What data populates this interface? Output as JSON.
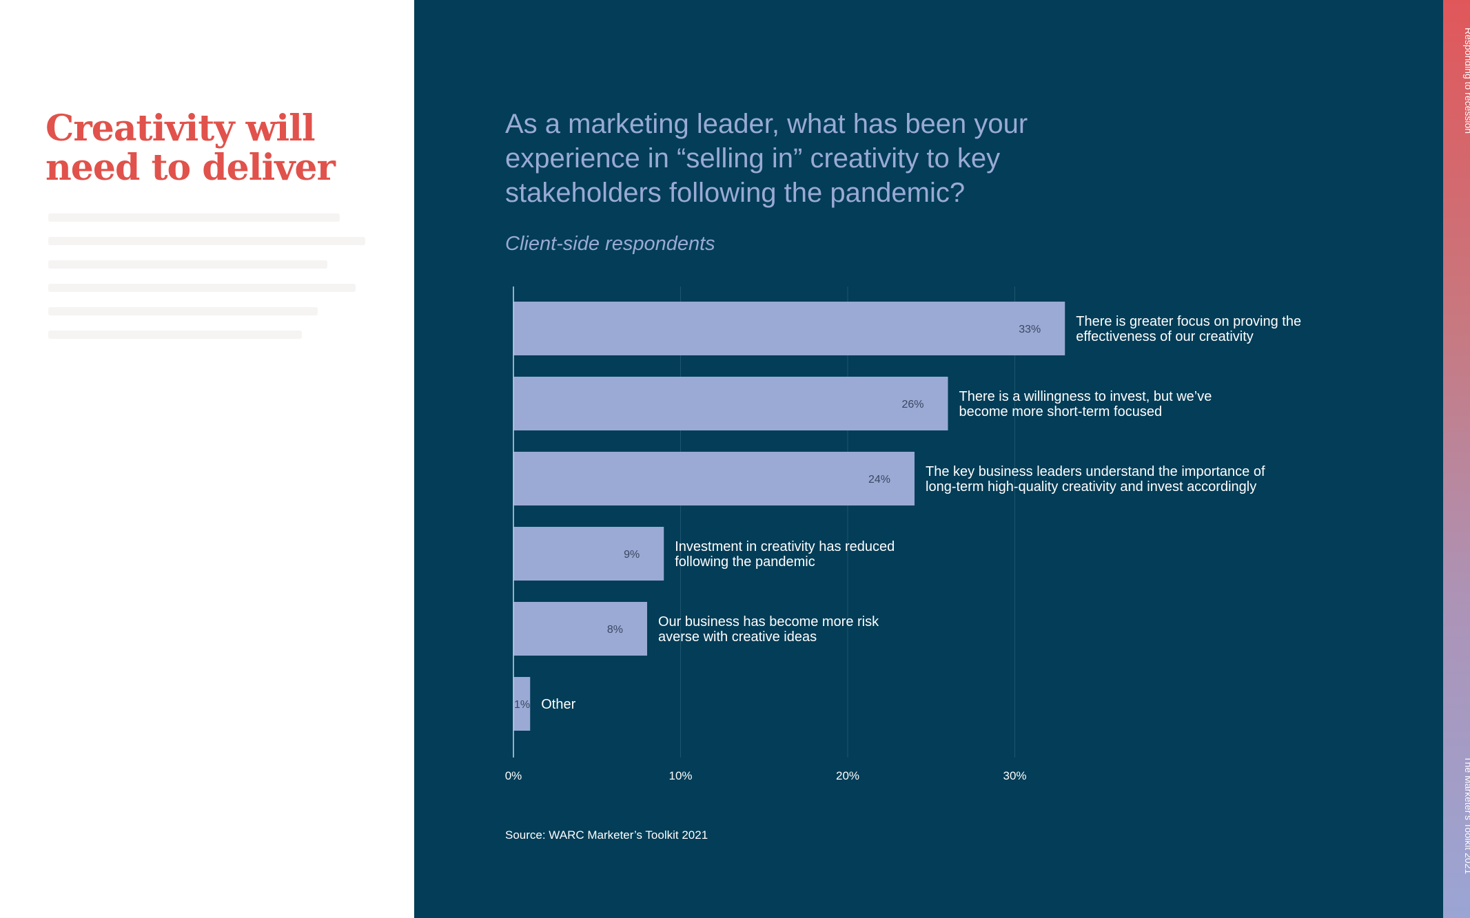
{
  "left": {
    "headline_line1": "Creativity will",
    "headline_line2": "need to deliver"
  },
  "side": {
    "top_label": "Responding to recession",
    "bottom_label": "The Marketer's Toolkit 2021"
  },
  "colors": {
    "panel": "#033d57",
    "bar": "#9aaad5",
    "accent": "#e0524b",
    "grid": "#1f5570"
  },
  "chart_data": {
    "type": "bar",
    "orientation": "horizontal",
    "title": "As a marketing leader, what has been your experience in “selling in” creativity to key stakeholders following the pandemic?",
    "subtitle": "Client-side respondents",
    "source": "Source: WARC Marketer’s Toolkit 2021",
    "xlim": [
      0,
      40
    ],
    "x_ticks": [
      0,
      10,
      20,
      30
    ],
    "x_tick_labels": [
      "0%",
      "10%",
      "20%",
      "30%"
    ],
    "categories": [
      [
        "There is greater focus on proving the",
        "effectiveness of our creativity"
      ],
      [
        "There is a willingness to invest, but we’ve",
        "become more short-term focused"
      ],
      [
        "The key business leaders understand the importance of",
        "long-term high-quality creativity and invest accordingly"
      ],
      [
        "Investment in creativity has reduced",
        "following the pandemic"
      ],
      [
        "Our business has become more risk",
        "averse with creative ideas"
      ],
      [
        "Other"
      ]
    ],
    "values": [
      33,
      26,
      24,
      9,
      8,
      1
    ],
    "value_labels": [
      "33%",
      "26%",
      "24%",
      "9%",
      "8%",
      "1%"
    ]
  }
}
